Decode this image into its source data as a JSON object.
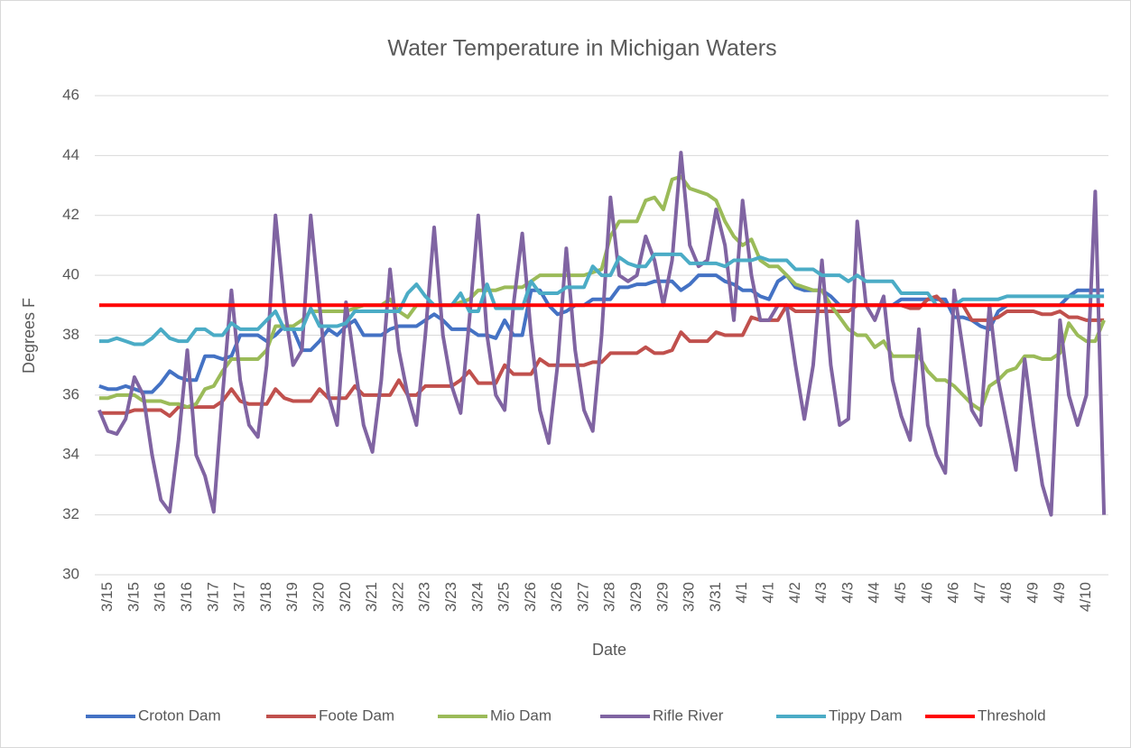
{
  "chart_data": {
    "type": "line",
    "title": "Water Temperature in Michigan Waters",
    "x_label": "Date",
    "y_label": "Degrees F",
    "categories": [
      null,
      "3/15",
      null,
      null,
      "3/15",
      null,
      null,
      "3/16",
      null,
      null,
      "3/16",
      null,
      null,
      "3/17",
      null,
      null,
      "3/17",
      null,
      null,
      "3/18",
      null,
      null,
      "3/19",
      null,
      null,
      "3/20",
      null,
      null,
      "3/20",
      null,
      null,
      "3/21",
      null,
      null,
      "3/22",
      null,
      null,
      "3/23",
      null,
      null,
      "3/23",
      null,
      null,
      "3/24",
      null,
      null,
      "3/25",
      null,
      null,
      "3/26",
      null,
      null,
      "3/26",
      null,
      null,
      "3/27",
      null,
      null,
      "3/28",
      null,
      null,
      "3/29",
      null,
      null,
      "3/29",
      null,
      null,
      "3/30",
      null,
      null,
      "3/31",
      null,
      null,
      "4/1",
      null,
      null,
      "4/1",
      null,
      null,
      "4/2",
      null,
      null,
      "4/3",
      null,
      null,
      "4/3",
      null,
      null,
      "4/4",
      null,
      null,
      "4/5",
      null,
      null,
      "4/6",
      null,
      null,
      "4/6",
      null,
      null,
      "4/7",
      null,
      null,
      "4/8",
      null,
      null,
      "4/9",
      null,
      null,
      "4/9",
      null,
      null,
      "4/10",
      null,
      null
    ],
    "series": [
      {
        "name": "Croton Dam",
        "color": "#4472c4",
        "values": [
          36.3,
          36.2,
          36.2,
          36.3,
          36.2,
          36.1,
          36.1,
          36.4,
          36.8,
          36.6,
          36.5,
          36.5,
          37.3,
          37.3,
          37.2,
          37.3,
          38,
          38,
          38,
          37.8,
          38,
          38.3,
          38.2,
          37.5,
          37.5,
          37.8,
          38.2,
          38,
          38.3,
          38.5,
          38,
          38,
          38,
          38.2,
          38.3,
          38.3,
          38.3,
          38.5,
          38.7,
          38.5,
          38.2,
          38.2,
          38.2,
          38,
          38,
          37.9,
          38.5,
          38,
          38,
          39.5,
          39.5,
          39,
          38.7,
          38.8,
          39,
          39,
          39.2,
          39.2,
          39.2,
          39.6,
          39.6,
          39.7,
          39.7,
          39.8,
          39.8,
          39.8,
          39.5,
          39.7,
          40,
          40,
          40,
          39.8,
          39.7,
          39.5,
          39.5,
          39.3,
          39.2,
          39.8,
          40,
          39.6,
          39.5,
          39.5,
          39.5,
          39.3,
          39,
          39,
          39,
          39,
          39,
          39,
          39,
          39.2,
          39.2,
          39.2,
          39.2,
          39.2,
          39.2,
          38.6,
          38.6,
          38.5,
          38.3,
          38.2,
          38.8,
          39,
          39,
          39,
          39,
          39,
          39,
          39,
          39.3,
          39.5,
          39.5,
          39.5,
          39.5
        ]
      },
      {
        "name": "Foote Dam",
        "color": "#c0504d",
        "values": [
          35.4,
          35.4,
          35.4,
          35.4,
          35.5,
          35.5,
          35.5,
          35.5,
          35.3,
          35.6,
          35.6,
          35.6,
          35.6,
          35.6,
          35.8,
          36.2,
          35.8,
          35.7,
          35.7,
          35.7,
          36.2,
          35.9,
          35.8,
          35.8,
          35.8,
          36.2,
          35.9,
          35.9,
          35.9,
          36.3,
          36,
          36,
          36,
          36,
          36.5,
          36,
          36,
          36.3,
          36.3,
          36.3,
          36.3,
          36.5,
          36.8,
          36.4,
          36.4,
          36.4,
          37,
          36.7,
          36.7,
          36.7,
          37.2,
          37,
          37,
          37,
          37,
          37,
          37.1,
          37.1,
          37.4,
          37.4,
          37.4,
          37.4,
          37.6,
          37.4,
          37.4,
          37.5,
          38.1,
          37.8,
          37.8,
          37.8,
          38.1,
          38,
          38,
          38,
          38.6,
          38.5,
          38.5,
          38.5,
          39,
          38.8,
          38.8,
          38.8,
          38.8,
          38.8,
          38.8,
          38.8,
          39,
          39,
          39,
          39,
          39,
          39,
          38.9,
          38.9,
          39.2,
          39.3,
          39,
          39,
          39,
          38.5,
          38.5,
          38.5,
          38.6,
          38.8,
          38.8,
          38.8,
          38.8,
          38.7,
          38.7,
          38.8,
          38.6,
          38.6,
          38.5,
          38.5,
          38.5
        ]
      },
      {
        "name": "Mio Dam",
        "color": "#9bbb59",
        "values": [
          35.9,
          35.9,
          36,
          36,
          36,
          35.8,
          35.8,
          35.8,
          35.7,
          35.7,
          35.6,
          35.7,
          36.2,
          36.3,
          36.8,
          37.2,
          37.2,
          37.2,
          37.2,
          37.5,
          38.3,
          38.3,
          38.3,
          38.5,
          38.8,
          38.8,
          38.8,
          38.8,
          38.8,
          38.9,
          39,
          39,
          39,
          39.2,
          38.8,
          38.6,
          39,
          39,
          39,
          39,
          39,
          39.1,
          39.2,
          39.5,
          39.5,
          39.5,
          39.6,
          39.6,
          39.6,
          39.8,
          40,
          40,
          40,
          40,
          40,
          40,
          40.1,
          40.2,
          41.3,
          41.8,
          41.8,
          41.8,
          42.5,
          42.6,
          42.2,
          43.2,
          43.3,
          42.9,
          42.8,
          42.7,
          42.5,
          41.8,
          41.3,
          41,
          41.2,
          40.5,
          40.3,
          40.3,
          40,
          39.7,
          39.6,
          39.5,
          39.5,
          39,
          38.6,
          38.2,
          38,
          38,
          37.6,
          37.8,
          37.3,
          37.3,
          37.3,
          37.3,
          36.8,
          36.5,
          36.5,
          36.3,
          36,
          35.7,
          35.5,
          36.3,
          36.5,
          36.8,
          36.9,
          37.3,
          37.3,
          37.2,
          37.2,
          37.4,
          38.4,
          38,
          37.8,
          37.8,
          38.5
        ]
      },
      {
        "name": "Rifle River",
        "color": "#8064a2",
        "values": [
          35.5,
          34.8,
          34.7,
          35.2,
          36.6,
          36,
          34,
          32.5,
          32.1,
          34.5,
          37.5,
          34,
          33.3,
          32.1,
          36,
          39.5,
          36.5,
          35,
          34.6,
          37,
          42,
          39,
          37,
          37.5,
          42,
          39,
          36,
          35,
          39.1,
          37,
          35,
          34.1,
          36.5,
          40.2,
          37.5,
          36,
          35,
          38,
          41.6,
          38,
          36.3,
          35.4,
          38.5,
          42,
          38,
          36,
          35.5,
          39,
          41.4,
          38,
          35.5,
          34.4,
          37,
          40.9,
          37.5,
          35.5,
          34.8,
          38,
          42.6,
          40,
          39.8,
          40,
          41.3,
          40.5,
          39,
          40.5,
          44.1,
          41,
          40.3,
          40.5,
          42.2,
          41,
          38.5,
          42.5,
          40,
          38.5,
          38.5,
          39,
          39,
          37,
          35.2,
          37,
          40.5,
          37,
          35,
          35.2,
          41.8,
          39,
          38.5,
          39.3,
          36.5,
          35.3,
          34.5,
          38.2,
          35,
          34,
          33.4,
          39.5,
          37.5,
          35.5,
          35,
          39,
          36.5,
          35,
          33.5,
          37.2,
          35,
          33,
          32,
          38.5,
          36,
          35,
          36,
          42.8,
          32
        ]
      },
      {
        "name": "Tippy Dam",
        "color": "#4bacc6",
        "values": [
          37.8,
          37.8,
          37.9,
          37.8,
          37.7,
          37.7,
          37.9,
          38.2,
          37.9,
          37.8,
          37.8,
          38.2,
          38.2,
          38,
          38,
          38.4,
          38.2,
          38.2,
          38.2,
          38.5,
          38.8,
          38.2,
          38.2,
          38.2,
          38.9,
          38.3,
          38.3,
          38.3,
          38.4,
          38.8,
          38.8,
          38.8,
          38.8,
          38.8,
          38.8,
          39.4,
          39.7,
          39.3,
          39,
          39,
          39,
          39.4,
          38.8,
          38.8,
          39.7,
          38.9,
          38.9,
          38.9,
          38.9,
          39.8,
          39.4,
          39.4,
          39.4,
          39.6,
          39.6,
          39.6,
          40.3,
          40,
          40,
          40.6,
          40.4,
          40.3,
          40.3,
          40.7,
          40.7,
          40.7,
          40.7,
          40.4,
          40.4,
          40.4,
          40.4,
          40.3,
          40.5,
          40.5,
          40.5,
          40.6,
          40.5,
          40.5,
          40.5,
          40.2,
          40.2,
          40.2,
          40,
          40,
          40,
          39.8,
          40,
          39.8,
          39.8,
          39.8,
          39.8,
          39.4,
          39.4,
          39.4,
          39.4,
          39,
          39,
          39,
          39.2,
          39.2,
          39.2,
          39.2,
          39.2,
          39.3,
          39.3,
          39.3,
          39.3,
          39.3,
          39.3,
          39.3,
          39.3,
          39.3,
          39.3,
          39.3,
          39.3
        ]
      },
      {
        "name": "Threshold",
        "color": "#ff0000",
        "values": [
          39,
          39,
          39,
          39,
          39,
          39,
          39,
          39,
          39,
          39,
          39,
          39,
          39,
          39,
          39,
          39,
          39,
          39,
          39,
          39,
          39,
          39,
          39,
          39,
          39,
          39,
          39,
          39,
          39,
          39,
          39,
          39,
          39,
          39,
          39,
          39,
          39,
          39,
          39,
          39,
          39,
          39,
          39,
          39,
          39,
          39,
          39,
          39,
          39,
          39,
          39,
          39,
          39,
          39,
          39,
          39,
          39,
          39,
          39,
          39,
          39,
          39,
          39,
          39,
          39,
          39,
          39,
          39,
          39,
          39,
          39,
          39,
          39,
          39,
          39,
          39,
          39,
          39,
          39,
          39,
          39,
          39,
          39,
          39,
          39,
          39,
          39,
          39,
          39,
          39,
          39,
          39,
          39,
          39,
          39,
          39,
          39,
          39,
          39,
          39,
          39,
          39,
          39,
          39,
          39,
          39,
          39,
          39,
          39,
          39,
          39,
          39,
          39,
          39,
          39
        ]
      }
    ],
    "ylim": [
      30,
      46
    ],
    "yticks": [
      30,
      32,
      34,
      36,
      38,
      40,
      42,
      44,
      46
    ],
    "grid": true,
    "legend": "bottom"
  }
}
